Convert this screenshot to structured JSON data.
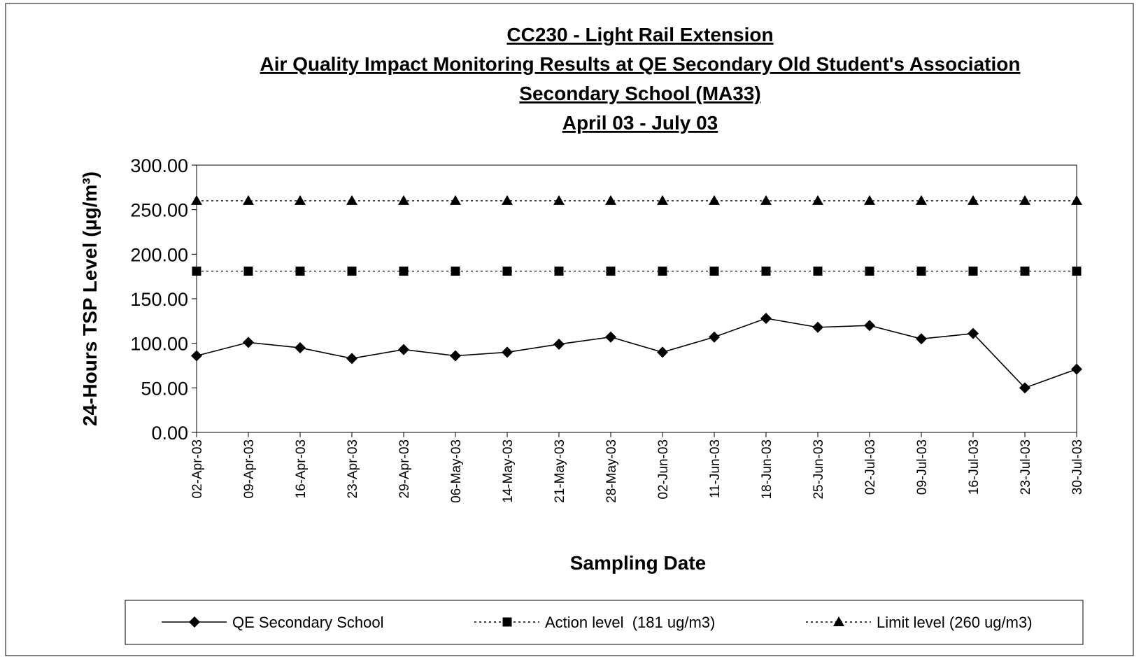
{
  "chart_data": {
    "type": "line",
    "title": [
      "CC230 - Light Rail Extension",
      "Air Quality Impact Monitoring Results at QE Secondary Old Student's Association",
      "Secondary School (MA33)",
      "April 03 - July 03"
    ],
    "x_label": "Sampling Date",
    "y_label": "24-Hours TSP Level (µg/m³)",
    "categories": [
      "02-Apr-03",
      "09-Apr-03",
      "16-Apr-03",
      "23-Apr-03",
      "29-Apr-03",
      "06-May-03",
      "14-May-03",
      "21-May-03",
      "28-May-03",
      "02-Jun-03",
      "11-Jun-03",
      "18-Jun-03",
      "25-Jun-03",
      "02-Jul-03",
      "09-Jul-03",
      "16-Jul-03",
      "23-Jul-03",
      "30-Jul-03"
    ],
    "series": [
      {
        "name": "QE Secondary School",
        "color": "#000000",
        "marker": "diamond",
        "dash": "solid",
        "values": [
          86,
          101,
          95,
          83,
          93,
          86,
          90,
          99,
          107,
          90,
          107,
          128,
          118,
          120,
          105,
          111,
          50,
          71
        ]
      },
      {
        "name": "Action level  (181 ug/m3)",
        "color": "#000000",
        "marker": "square",
        "dash": "dotted",
        "values": [
          181,
          181,
          181,
          181,
          181,
          181,
          181,
          181,
          181,
          181,
          181,
          181,
          181,
          181,
          181,
          181,
          181,
          181
        ]
      },
      {
        "name": "Limit level (260 ug/m3)",
        "color": "#000000",
        "marker": "triangle",
        "dash": "dotted",
        "values": [
          260,
          260,
          260,
          260,
          260,
          260,
          260,
          260,
          260,
          260,
          260,
          260,
          260,
          260,
          260,
          260,
          260,
          260
        ]
      }
    ],
    "ylim": [
      0,
      300
    ],
    "yticks": [
      {
        "value": 0,
        "label": "0.00"
      },
      {
        "value": 50,
        "label": "50.00"
      },
      {
        "value": 100,
        "label": "100.00"
      },
      {
        "value": 150,
        "label": "150.00"
      },
      {
        "value": 200,
        "label": "200.00"
      },
      {
        "value": 250,
        "label": "250.00"
      },
      {
        "value": 300,
        "label": "300.00"
      }
    ],
    "grid": false,
    "legend": "bottom"
  }
}
